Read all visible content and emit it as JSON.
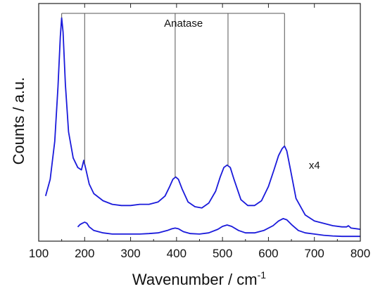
{
  "chart_data": {
    "type": "line",
    "xlabel": "Wavenumber / cm",
    "xlabel_superscript": "-1",
    "ylabel": "Counts / a.u.",
    "xlim": [
      100,
      800
    ],
    "ylim": [
      0,
      1
    ],
    "x_ticks": [
      "100",
      "200",
      "300",
      "400",
      "500",
      "600",
      "700",
      "800"
    ],
    "y_ticks_labeled": false,
    "grid": false,
    "legend": "none",
    "series": [
      {
        "color": "#1a1adb",
        "x": [
          115,
          125,
          135,
          142,
          147,
          150,
          153,
          158,
          165,
          175,
          185,
          193,
          198,
          203,
          210,
          220,
          240,
          260,
          280,
          300,
          320,
          340,
          360,
          375,
          385,
          392,
          398,
          404,
          412,
          425,
          440,
          455,
          470,
          485,
          495,
          503,
          510,
          517,
          525,
          540,
          555,
          570,
          585,
          600,
          612,
          622,
          630,
          635,
          640,
          648,
          660,
          680,
          700,
          720,
          740,
          760,
          770,
          774,
          780,
          800
        ],
        "y": [
          0.19,
          0.26,
          0.42,
          0.65,
          0.86,
          0.94,
          0.88,
          0.66,
          0.46,
          0.35,
          0.31,
          0.3,
          0.34,
          0.3,
          0.24,
          0.2,
          0.17,
          0.155,
          0.15,
          0.15,
          0.155,
          0.155,
          0.165,
          0.19,
          0.23,
          0.26,
          0.27,
          0.26,
          0.22,
          0.165,
          0.145,
          0.14,
          0.16,
          0.21,
          0.27,
          0.31,
          0.32,
          0.31,
          0.26,
          0.175,
          0.15,
          0.15,
          0.17,
          0.23,
          0.3,
          0.36,
          0.39,
          0.4,
          0.38,
          0.3,
          0.18,
          0.11,
          0.085,
          0.075,
          0.065,
          0.06,
          0.06,
          0.065,
          0.055,
          0.05
        ]
      },
      {
        "color": "#1a1adb",
        "x": [
          185,
          190,
          195,
          200,
          205,
          210,
          220,
          240,
          260,
          280,
          300,
          320,
          340,
          360,
          380,
          390,
          397,
          404,
          415,
          430,
          450,
          470,
          490,
          500,
          510,
          520,
          535,
          550,
          570,
          590,
          610,
          622,
          632,
          640,
          650,
          665,
          680,
          700,
          720,
          740,
          760,
          780,
          800
        ],
        "y": [
          0.06,
          0.07,
          0.075,
          0.08,
          0.075,
          0.06,
          0.045,
          0.035,
          0.03,
          0.03,
          0.03,
          0.03,
          0.032,
          0.035,
          0.045,
          0.052,
          0.055,
          0.052,
          0.04,
          0.032,
          0.03,
          0.035,
          0.05,
          0.062,
          0.068,
          0.062,
          0.045,
          0.035,
          0.035,
          0.045,
          0.065,
          0.085,
          0.095,
          0.09,
          0.07,
          0.045,
          0.035,
          0.03,
          0.025,
          0.022,
          0.02,
          0.02,
          0.02
        ]
      }
    ],
    "annotations": {
      "phase_label": "Anatase",
      "peak_marker_x": [
        150,
        200,
        397,
        512,
        635
      ],
      "scale_label": "x4",
      "scale_label_x": 688,
      "scale_label_y": 0.32
    }
  }
}
